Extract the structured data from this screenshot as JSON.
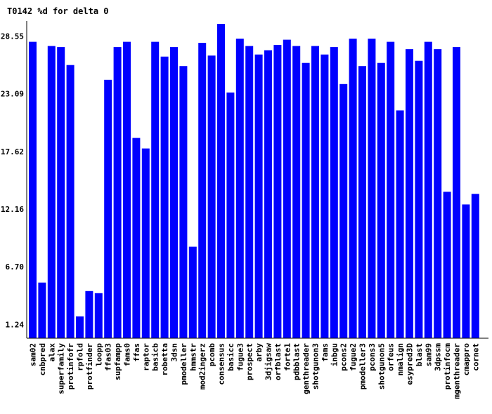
{
  "chart_data": {
    "type": "bar",
    "title": "T0142 %d for delta 0",
    "xlabel": "",
    "ylabel": "",
    "bar_color": "#0000ff",
    "ylim": [
      0,
      29.7
    ],
    "yticks": [
      "1.24",
      "6.70",
      "12.16",
      "17.62",
      "23.09",
      "28.55"
    ],
    "ytick_values": [
      1.24,
      6.7,
      12.16,
      17.62,
      23.09,
      28.55
    ],
    "categories": [
      "sam02",
      "cnbpred",
      "alax",
      "superfamily",
      "protinfofr",
      "rpfold",
      "protfinder",
      "loopp",
      "ffas03",
      "supfampp",
      "fams0",
      "ffas",
      "raptor",
      "basicb",
      "robetta",
      "3dsn",
      "pmodeller",
      "hmmstr",
      "mod2ingerz",
      "pcomb",
      "consensus",
      "basicc",
      "fugue3",
      "prospect",
      "arby",
      "3djigsaw",
      "orfblast",
      "forte1",
      "pdbblast",
      "genthreader",
      "shotgunon3",
      "fams",
      "inbgu",
      "pcons2",
      "fugue2",
      "pmodeller3",
      "pcons3",
      "shotgunon5",
      "orfeus",
      "nmalign",
      "esypred3D",
      "blast",
      "sam99",
      "3dpssm",
      "protinfocm",
      "mgenthreader",
      "cmappro",
      "cornet"
    ],
    "values": [
      28.0,
      5.2,
      27.6,
      27.5,
      25.8,
      2.0,
      4.4,
      4.2,
      24.4,
      27.5,
      28.0,
      18.9,
      17.9,
      28.0,
      26.6,
      27.5,
      25.7,
      8.6,
      27.9,
      26.7,
      29.7,
      23.2,
      28.3,
      27.6,
      26.8,
      27.2,
      27.7,
      28.2,
      27.6,
      26.0,
      27.6,
      26.8,
      27.5,
      24.0,
      28.3,
      25.7,
      28.3,
      26.0,
      28.0,
      21.5,
      27.3,
      26.2,
      28.0,
      27.3,
      13.8,
      27.5,
      12.6,
      13.6
    ]
  }
}
